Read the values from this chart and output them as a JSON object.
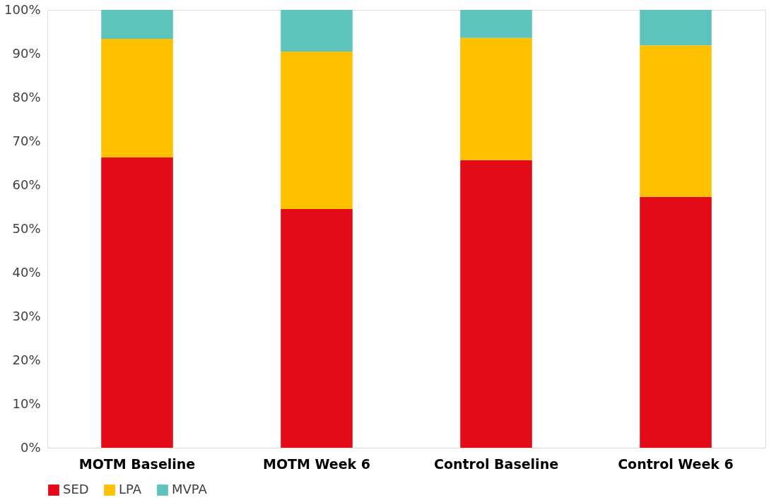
{
  "chart_data": {
    "type": "bar",
    "stacked": true,
    "categories": [
      "MOTM Baseline",
      "MOTM Week 6",
      "Control Baseline",
      "Control Week 6"
    ],
    "series": [
      {
        "name": "SED",
        "color": "#e30b17",
        "values": [
          66.3,
          54.5,
          65.7,
          57.3
        ]
      },
      {
        "name": "LPA",
        "color": "#ffc000",
        "values": [
          27.1,
          36.0,
          27.9,
          34.6
        ]
      },
      {
        "name": "MVPA",
        "color": "#5fc3bd",
        "values": [
          6.6,
          9.5,
          6.4,
          8.1
        ]
      }
    ],
    "ylim": [
      0,
      100
    ],
    "yticks": [
      {
        "value": 0,
        "label": "0%"
      },
      {
        "value": 10,
        "label": "10%"
      },
      {
        "value": 20,
        "label": "20%"
      },
      {
        "value": 30,
        "label": "30%"
      },
      {
        "value": 40,
        "label": "40%"
      },
      {
        "value": 50,
        "label": "50%"
      },
      {
        "value": 60,
        "label": "60%"
      },
      {
        "value": 70,
        "label": "70%"
      },
      {
        "value": 80,
        "label": "80%"
      },
      {
        "value": 90,
        "label": "90%"
      },
      {
        "value": 100,
        "label": "100%"
      }
    ],
    "grid": false,
    "legend": "bottom"
  }
}
